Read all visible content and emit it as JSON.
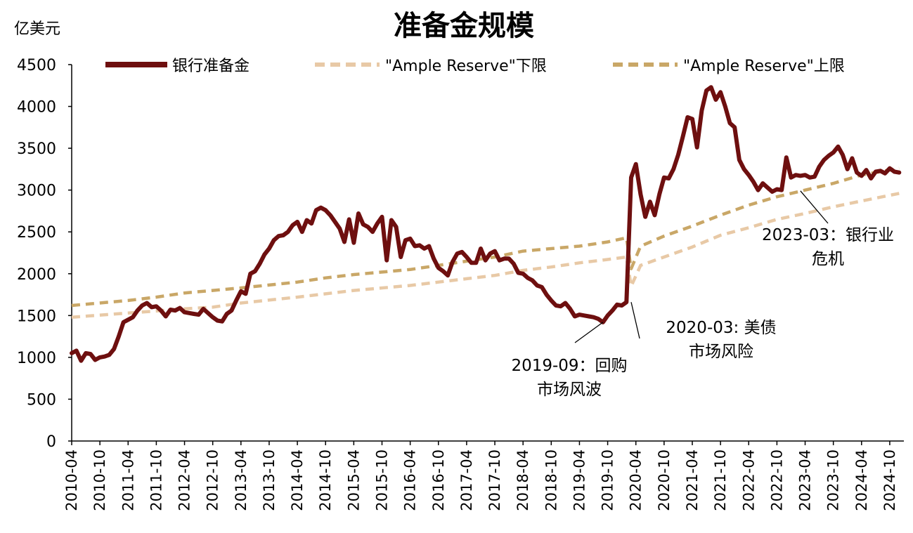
{
  "chart_data": {
    "type": "line",
    "title": "准备金规模",
    "ylabel": "亿美元",
    "xlabel": "",
    "ylim": [
      0,
      4500
    ],
    "yticks": [
      "0",
      "500",
      "1000",
      "1500",
      "2000",
      "2500",
      "3000",
      "3500",
      "4000",
      "4500"
    ],
    "x_range": [
      "2010-04",
      "2025-01"
    ],
    "grid": false,
    "legend_position": "top",
    "x_tick_labels": [
      "2010-04",
      "2010-10",
      "2011-04",
      "2011-10",
      "2012-04",
      "2012-10",
      "2013-04",
      "2013-10",
      "2014-04",
      "2014-10",
      "2015-04",
      "2015-10",
      "2016-04",
      "2016-10",
      "2017-04",
      "2017-10",
      "2018-04",
      "2018-10",
      "2019-04",
      "2019-10",
      "2020-04",
      "2020-10",
      "2021-04",
      "2021-10",
      "2022-04",
      "2022-10",
      "2023-04",
      "2023-10",
      "2024-04",
      "2024-10"
    ],
    "series": [
      {
        "name": "银行准备金",
        "color": "#6e0f0f",
        "style": "solid",
        "points": [
          [
            "2010-04",
            1050
          ],
          [
            "2010-05",
            1080
          ],
          [
            "2010-06",
            960
          ],
          [
            "2010-07",
            1050
          ],
          [
            "2010-08",
            1040
          ],
          [
            "2010-09",
            970
          ],
          [
            "2010-10",
            1000
          ],
          [
            "2010-11",
            1010
          ],
          [
            "2010-12",
            1030
          ],
          [
            "2011-01",
            1100
          ],
          [
            "2011-02",
            1250
          ],
          [
            "2011-03",
            1420
          ],
          [
            "2011-04",
            1450
          ],
          [
            "2011-05",
            1480
          ],
          [
            "2011-06",
            1560
          ],
          [
            "2011-07",
            1620
          ],
          [
            "2011-08",
            1650
          ],
          [
            "2011-09",
            1600
          ],
          [
            "2011-10",
            1610
          ],
          [
            "2011-11",
            1560
          ],
          [
            "2011-12",
            1490
          ],
          [
            "2012-01",
            1570
          ],
          [
            "2012-02",
            1560
          ],
          [
            "2012-03",
            1590
          ],
          [
            "2012-04",
            1540
          ],
          [
            "2012-05",
            1530
          ],
          [
            "2012-06",
            1520
          ],
          [
            "2012-07",
            1510
          ],
          [
            "2012-08",
            1580
          ],
          [
            "2012-09",
            1530
          ],
          [
            "2012-10",
            1480
          ],
          [
            "2012-11",
            1440
          ],
          [
            "2012-12",
            1430
          ],
          [
            "2013-01",
            1520
          ],
          [
            "2013-02",
            1560
          ],
          [
            "2013-03",
            1680
          ],
          [
            "2013-04",
            1790
          ],
          [
            "2013-05",
            1760
          ],
          [
            "2013-06",
            2000
          ],
          [
            "2013-07",
            2030
          ],
          [
            "2013-08",
            2120
          ],
          [
            "2013-09",
            2230
          ],
          [
            "2013-10",
            2300
          ],
          [
            "2013-11",
            2400
          ],
          [
            "2013-12",
            2450
          ],
          [
            "2014-01",
            2460
          ],
          [
            "2014-02",
            2500
          ],
          [
            "2014-03",
            2580
          ],
          [
            "2014-04",
            2620
          ],
          [
            "2014-05",
            2500
          ],
          [
            "2014-06",
            2640
          ],
          [
            "2014-07",
            2600
          ],
          [
            "2014-08",
            2760
          ],
          [
            "2014-09",
            2790
          ],
          [
            "2014-10",
            2760
          ],
          [
            "2014-11",
            2700
          ],
          [
            "2014-12",
            2620
          ],
          [
            "2015-01",
            2540
          ],
          [
            "2015-02",
            2380
          ],
          [
            "2015-03",
            2650
          ],
          [
            "2015-04",
            2370
          ],
          [
            "2015-05",
            2720
          ],
          [
            "2015-06",
            2590
          ],
          [
            "2015-07",
            2560
          ],
          [
            "2015-08",
            2500
          ],
          [
            "2015-09",
            2600
          ],
          [
            "2015-10",
            2680
          ],
          [
            "2015-11",
            2160
          ],
          [
            "2015-12",
            2640
          ],
          [
            "2016-01",
            2560
          ],
          [
            "2016-02",
            2200
          ],
          [
            "2016-03",
            2400
          ],
          [
            "2016-04",
            2420
          ],
          [
            "2016-05",
            2330
          ],
          [
            "2016-06",
            2340
          ],
          [
            "2016-07",
            2300
          ],
          [
            "2016-08",
            2330
          ],
          [
            "2016-09",
            2180
          ],
          [
            "2016-10",
            2070
          ],
          [
            "2016-11",
            2030
          ],
          [
            "2016-12",
            1980
          ],
          [
            "2017-01",
            2140
          ],
          [
            "2017-02",
            2240
          ],
          [
            "2017-03",
            2260
          ],
          [
            "2017-04",
            2200
          ],
          [
            "2017-05",
            2130
          ],
          [
            "2017-06",
            2130
          ],
          [
            "2017-07",
            2300
          ],
          [
            "2017-08",
            2160
          ],
          [
            "2017-09",
            2240
          ],
          [
            "2017-10",
            2270
          ],
          [
            "2017-11",
            2160
          ],
          [
            "2017-12",
            2180
          ],
          [
            "2018-01",
            2180
          ],
          [
            "2018-02",
            2120
          ],
          [
            "2018-03",
            2010
          ],
          [
            "2018-04",
            2000
          ],
          [
            "2018-05",
            1950
          ],
          [
            "2018-06",
            1920
          ],
          [
            "2018-07",
            1860
          ],
          [
            "2018-08",
            1840
          ],
          [
            "2018-09",
            1750
          ],
          [
            "2018-10",
            1680
          ],
          [
            "2018-11",
            1620
          ],
          [
            "2018-12",
            1610
          ],
          [
            "2019-01",
            1650
          ],
          [
            "2019-02",
            1580
          ],
          [
            "2019-03",
            1490
          ],
          [
            "2019-04",
            1510
          ],
          [
            "2019-05",
            1500
          ],
          [
            "2019-06",
            1490
          ],
          [
            "2019-07",
            1480
          ],
          [
            "2019-08",
            1460
          ],
          [
            "2019-09",
            1420
          ],
          [
            "2019-10",
            1500
          ],
          [
            "2019-11",
            1560
          ],
          [
            "2019-12",
            1630
          ],
          [
            "2020-01",
            1620
          ],
          [
            "2020-02",
            1660
          ],
          [
            "2020-03",
            3150
          ],
          [
            "2020-04",
            3310
          ],
          [
            "2020-05",
            2950
          ],
          [
            "2020-06",
            2680
          ],
          [
            "2020-07",
            2860
          ],
          [
            "2020-08",
            2700
          ],
          [
            "2020-09",
            2950
          ],
          [
            "2020-10",
            3150
          ],
          [
            "2020-11",
            3140
          ],
          [
            "2020-12",
            3250
          ],
          [
            "2021-01",
            3420
          ],
          [
            "2021-02",
            3640
          ],
          [
            "2021-03",
            3870
          ],
          [
            "2021-04",
            3850
          ],
          [
            "2021-05",
            3510
          ],
          [
            "2021-06",
            3950
          ],
          [
            "2021-07",
            4190
          ],
          [
            "2021-08",
            4230
          ],
          [
            "2021-09",
            4080
          ],
          [
            "2021-10",
            4170
          ],
          [
            "2021-11",
            4000
          ],
          [
            "2021-12",
            3800
          ],
          [
            "2022-01",
            3750
          ],
          [
            "2022-02",
            3360
          ],
          [
            "2022-03",
            3250
          ],
          [
            "2022-04",
            3180
          ],
          [
            "2022-05",
            3100
          ],
          [
            "2022-06",
            3000
          ],
          [
            "2022-07",
            3080
          ],
          [
            "2022-08",
            3030
          ],
          [
            "2022-09",
            2980
          ],
          [
            "2022-10",
            3010
          ],
          [
            "2022-11",
            3000
          ],
          [
            "2022-12",
            3390
          ],
          [
            "2023-01",
            3150
          ],
          [
            "2023-02",
            3180
          ],
          [
            "2023-03",
            3170
          ],
          [
            "2023-04",
            3180
          ],
          [
            "2023-05",
            3150
          ],
          [
            "2023-06",
            3160
          ],
          [
            "2023-07",
            3280
          ],
          [
            "2023-08",
            3360
          ],
          [
            "2023-09",
            3410
          ],
          [
            "2023-10",
            3450
          ],
          [
            "2023-11",
            3520
          ],
          [
            "2023-12",
            3420
          ],
          [
            "2024-01",
            3250
          ],
          [
            "2024-02",
            3380
          ],
          [
            "2024-03",
            3210
          ],
          [
            "2024-04",
            3170
          ],
          [
            "2024-05",
            3240
          ],
          [
            "2024-06",
            3140
          ],
          [
            "2024-07",
            3220
          ],
          [
            "2024-08",
            3230
          ],
          [
            "2024-09",
            3200
          ],
          [
            "2024-10",
            3260
          ],
          [
            "2024-11",
            3220
          ],
          [
            "2024-12",
            3210
          ]
        ]
      },
      {
        "name": "\"Ample Reserve\"下限",
        "color": "#e8c9a6",
        "style": "dashed",
        "points": [
          [
            "2010-04",
            1480
          ],
          [
            "2011-04",
            1530
          ],
          [
            "2012-04",
            1580
          ],
          [
            "2012-10",
            1600
          ],
          [
            "2013-04",
            1650
          ],
          [
            "2014-04",
            1720
          ],
          [
            "2014-10",
            1760
          ],
          [
            "2015-04",
            1800
          ],
          [
            "2016-04",
            1860
          ],
          [
            "2016-10",
            1900
          ],
          [
            "2017-04",
            1940
          ],
          [
            "2017-10",
            1980
          ],
          [
            "2018-04",
            2040
          ],
          [
            "2018-10",
            2080
          ],
          [
            "2019-04",
            2130
          ],
          [
            "2019-10",
            2170
          ],
          [
            "2020-02",
            2200
          ],
          [
            "2020-03",
            1850
          ],
          [
            "2020-05",
            2100
          ],
          [
            "2020-10",
            2200
          ],
          [
            "2021-04",
            2320
          ],
          [
            "2021-10",
            2460
          ],
          [
            "2022-04",
            2550
          ],
          [
            "2022-10",
            2650
          ],
          [
            "2023-04",
            2720
          ],
          [
            "2023-10",
            2800
          ],
          [
            "2024-04",
            2870
          ],
          [
            "2024-12",
            2960
          ]
        ]
      },
      {
        "name": "\"Ample Reserve\"上限",
        "color": "#c9a767",
        "style": "dashed",
        "points": [
          [
            "2010-04",
            1620
          ],
          [
            "2011-04",
            1680
          ],
          [
            "2011-10",
            1720
          ],
          [
            "2012-04",
            1770
          ],
          [
            "2012-10",
            1800
          ],
          [
            "2013-04",
            1830
          ],
          [
            "2014-04",
            1900
          ],
          [
            "2014-10",
            1950
          ],
          [
            "2015-04",
            1990
          ],
          [
            "2016-04",
            2050
          ],
          [
            "2016-10",
            2100
          ],
          [
            "2017-04",
            2150
          ],
          [
            "2017-10",
            2200
          ],
          [
            "2018-04",
            2270
          ],
          [
            "2018-10",
            2300
          ],
          [
            "2019-04",
            2330
          ],
          [
            "2019-10",
            2380
          ],
          [
            "2020-02",
            2430
          ],
          [
            "2020-03",
            2060
          ],
          [
            "2020-05",
            2330
          ],
          [
            "2020-10",
            2450
          ],
          [
            "2021-04",
            2570
          ],
          [
            "2021-10",
            2700
          ],
          [
            "2022-04",
            2820
          ],
          [
            "2022-10",
            2920
          ],
          [
            "2023-04",
            3000
          ],
          [
            "2023-10",
            3080
          ],
          [
            "2024-04",
            3180
          ],
          [
            "2024-12",
            3260
          ]
        ]
      }
    ],
    "annotations": [
      {
        "date": "2019-09",
        "value": 1420,
        "lines": [
          "2019-09：回购",
          "市场风波"
        ]
      },
      {
        "date": "2020-03",
        "value": 1660,
        "lines": [
          "2020-03: 美债",
          "市场风险"
        ]
      },
      {
        "date": "2023-03",
        "value": 2990,
        "lines": [
          "2023-03：银行业",
          "危机"
        ]
      }
    ]
  }
}
